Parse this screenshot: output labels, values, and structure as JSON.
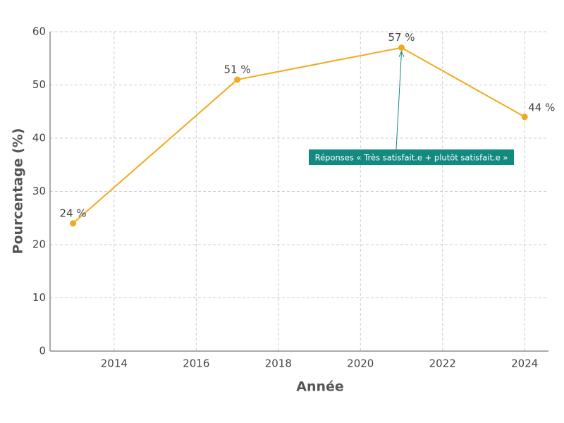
{
  "chart_data": {
    "type": "line",
    "x_label": "Année",
    "y_label": "Pourcentage (%)",
    "x": [
      2013,
      2017,
      2021,
      2024
    ],
    "series": [
      {
        "name": "Réponses « Très satisfait.e + plutôt satisfait.e »",
        "color": "#f0aa1e",
        "values": [
          24,
          51,
          57,
          44
        ],
        "value_labels": [
          "24 %",
          "51 %",
          "57 %",
          "44 %"
        ]
      }
    ],
    "xlim": [
      2012.44,
      2024.58
    ],
    "xticks": [
      2014,
      2016,
      2018,
      2020,
      2022,
      2024
    ],
    "ylim": [
      0,
      60
    ],
    "yticks": [
      0,
      10,
      20,
      30,
      40,
      50,
      60
    ],
    "grid": true,
    "annotation_color": "#128a80"
  }
}
